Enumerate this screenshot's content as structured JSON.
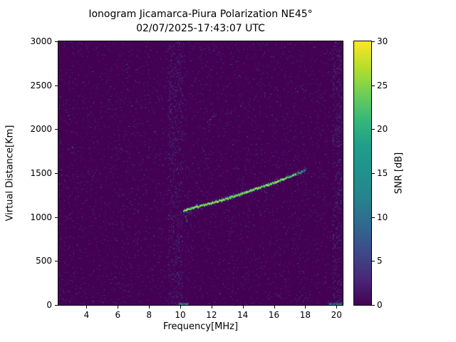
{
  "chart_data": {
    "type": "heatmap",
    "title": "Ionogram Jicamarca-Piura Polarization NE45°",
    "subtitle": "02/07/2025-17:43:07 UTC",
    "xlabel": "Frequency[MHz]",
    "ylabel": "Virtual Distance[Km]",
    "colorbar_label": "SNR [dB]",
    "xlim": [
      2.2,
      20.4
    ],
    "ylim": [
      0,
      3000
    ],
    "clim": [
      0,
      30
    ],
    "xticks": [
      4,
      6,
      8,
      10,
      12,
      14,
      16,
      18,
      20
    ],
    "yticks": [
      0,
      500,
      1000,
      1500,
      2000,
      2500,
      3000
    ],
    "cticks": [
      0,
      5,
      10,
      15,
      20,
      25,
      30
    ],
    "colormap": "viridis",
    "colormap_stops": [
      "#440154",
      "#482878",
      "#3e4989",
      "#31688e",
      "#26828e",
      "#21918c",
      "#1f9e89",
      "#35b779",
      "#6ece58",
      "#b5de2b",
      "#fde725"
    ],
    "background_snr_db": 0,
    "noise_floor_max_db": 7,
    "main_echo_trace": {
      "snr_db_peak": 30,
      "points": [
        [
          10.2,
          1075
        ],
        [
          10.5,
          1095
        ],
        [
          11.0,
          1115
        ],
        [
          11.5,
          1140
        ],
        [
          12.0,
          1165
        ],
        [
          12.5,
          1190
        ],
        [
          13.0,
          1215
        ],
        [
          13.5,
          1245
        ],
        [
          14.0,
          1275
        ],
        [
          14.5,
          1305
        ],
        [
          15.0,
          1335
        ],
        [
          15.5,
          1365
        ],
        [
          16.0,
          1395
        ],
        [
          16.5,
          1428
        ],
        [
          17.0,
          1462
        ],
        [
          17.5,
          1500
        ],
        [
          18.05,
          1545
        ]
      ]
    },
    "secondary_features": [
      {
        "name": "leading-edge-tail",
        "points": [
          [
            10.22,
            1075
          ],
          [
            10.3,
            1015
          ],
          [
            10.38,
            965
          ],
          [
            10.5,
            935
          ]
        ],
        "snr_db": 13,
        "density": 0.5
      },
      {
        "name": "second-hop-echo",
        "points": [
          [
            11.75,
            2095
          ],
          [
            12.0,
            2140
          ],
          [
            12.3,
            2195
          ]
        ],
        "snr_db": 12,
        "density": 0.45
      },
      {
        "name": "below-start-scatter",
        "points": [
          [
            10.4,
            1045
          ],
          [
            11.2,
            1075
          ]
        ],
        "snr_db": 10,
        "density": 0.3
      }
    ],
    "interference_bands_mhz": [
      [
        9.2,
        10.15
      ],
      [
        19.75,
        20.35
      ]
    ],
    "bottom_edge_echoes": [
      {
        "f_range": [
          9.9,
          10.5
        ],
        "snr_db": 20
      },
      {
        "f_range": [
          19.5,
          20.3
        ],
        "snr_db": 16
      }
    ]
  }
}
